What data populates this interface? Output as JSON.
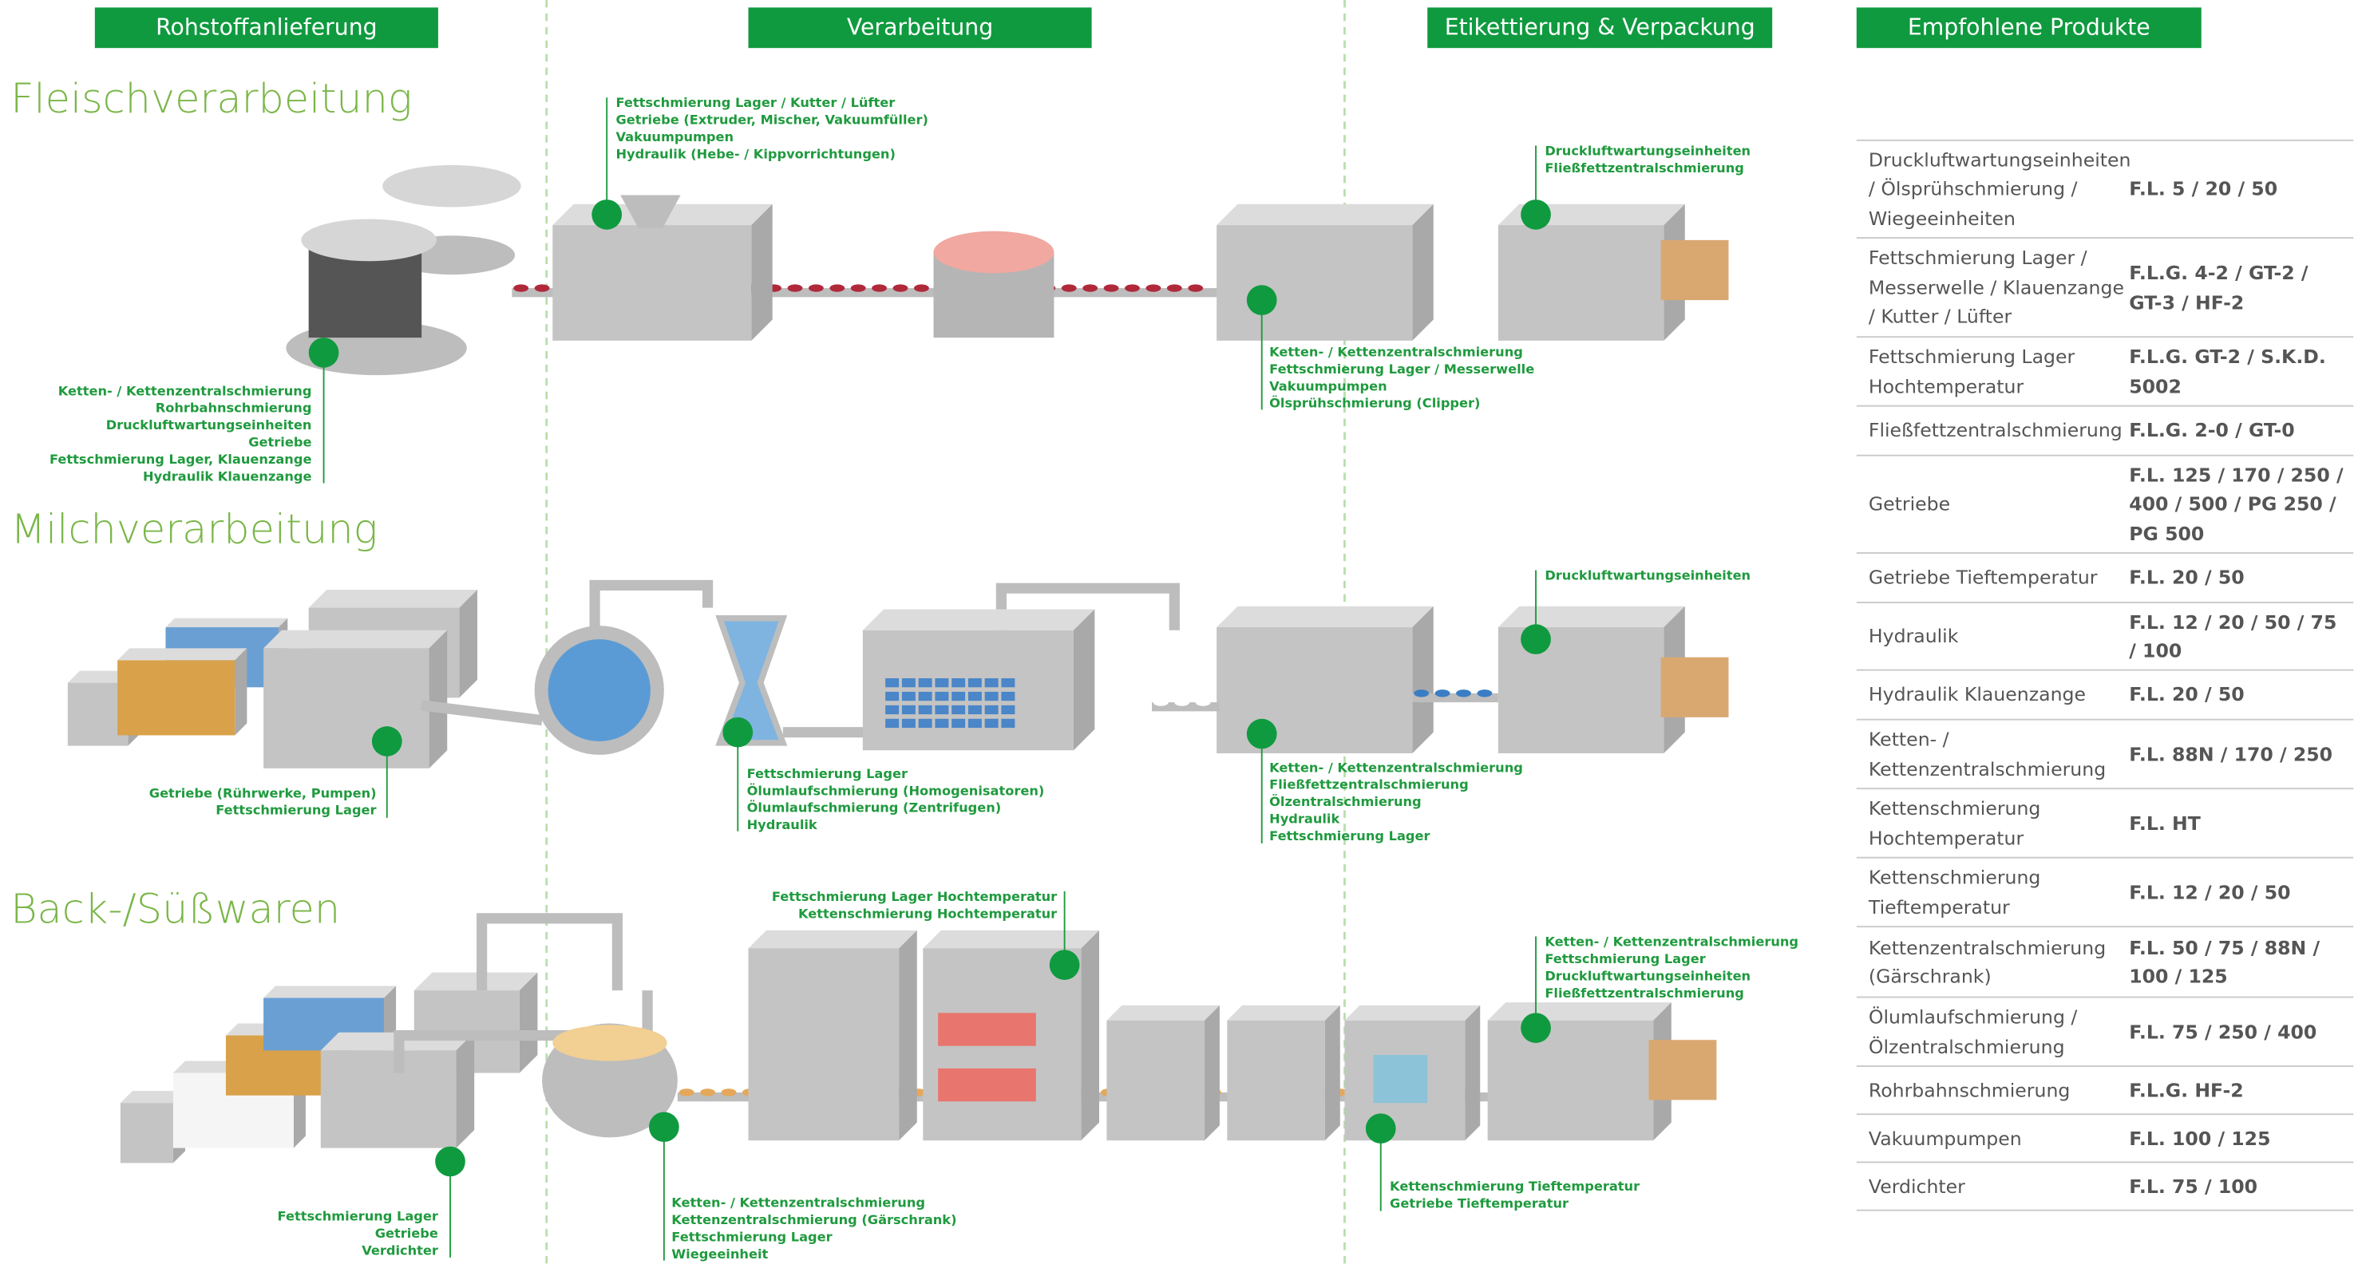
{
  "headers": [
    "Rohstoffanlieferung",
    "Verarbeitung",
    "Etikettierung & Verpackung",
    "Empfohlene Produkte"
  ],
  "sections": [
    {
      "title": "Fleischverarbeitung",
      "callouts": [
        {
          "lines": [
            "Ketten- / Kettenzentralschmierung",
            "Rohrbahnschmierung",
            "Druckluftwartungseinheiten",
            "Getriebe",
            "Fettschmierung Lager, Klauenzange",
            "Hydraulik Klauenzange"
          ]
        },
        {
          "lines": [
            "Fettschmierung Lager / Kutter / Lüfter",
            "Getriebe (Extruder, Mischer, Vakuumfüller)",
            "Vakuumpumpen",
            "Hydraulik (Hebe- / Kippvorrichtungen)"
          ]
        },
        {
          "lines": [
            "Ketten- / Kettenzentralschmierung",
            "Fettschmierung Lager / Messerwelle",
            "Vakuumpumpen",
            "Ölsprühschmierung (Clipper)"
          ]
        },
        {
          "lines": [
            "Druckluftwartungseinheiten",
            "Fließfettzentralschmierung"
          ]
        }
      ]
    },
    {
      "title": "Milchverarbeitung",
      "callouts": [
        {
          "lines": [
            "Getriebe (Rührwerke, Pumpen)",
            "Fettschmierung Lager"
          ]
        },
        {
          "lines": [
            "Fettschmierung Lager",
            "Ölumlaufschmierung (Homogenisatoren)",
            "Ölumlaufschmierung (Zentrifugen)",
            "Hydraulik"
          ]
        },
        {
          "lines": [
            "Ketten- / Kettenzentralschmierung",
            "Fließfettzentralschmierung",
            "Ölzentralschmierung",
            "Hydraulik",
            "Fettschmierung Lager"
          ]
        },
        {
          "lines": [
            "Druckluftwartungseinheiten"
          ]
        }
      ]
    },
    {
      "title": "Back-/Süßwaren",
      "callouts": [
        {
          "lines": [
            "Fettschmierung Lager",
            "Getriebe",
            "Verdichter"
          ]
        },
        {
          "lines": [
            "Ketten- / Kettenzentralschmierung",
            "Kettenzentralschmierung (Gärschrank)",
            "Fettschmierung Lager",
            "Wiegeeinheit"
          ]
        },
        {
          "lines": [
            "Fettschmierung Lager Hochtemperatur",
            "Kettenschmierung Hochtemperatur"
          ]
        },
        {
          "lines": [
            "Kettenschmierung Tieftemperatur",
            "Getriebe Tieftemperatur"
          ]
        },
        {
          "lines": [
            "Ketten- / Kettenzentralschmierung",
            "Fettschmierung Lager",
            "Druckluftwartungseinheiten",
            "Fließfettzentralschmierung"
          ]
        }
      ]
    }
  ],
  "table": {
    "rows": [
      [
        "Druckluftwartungseinheiten / Ölsprühschmierung / Wiegeeinheiten",
        "F.L. 5 / 20 / 50"
      ],
      [
        "Fettschmierung Lager / Messerwelle / Klauenzange / Kutter / Lüfter",
        "F.L.G. 4-2 / GT-2 / GT-3 / HF-2"
      ],
      [
        "Fettschmierung Lager Hochtemperatur",
        "F.L.G. GT-2 / S.K.D. 5002"
      ],
      [
        "Fließfettzentralschmierung",
        "F.L.G. 2-0 / GT-0"
      ],
      [
        "Getriebe",
        "F.L. 125 / 170 / 250 / 400 / 500 / PG 250 / PG 500"
      ],
      [
        "Getriebe Tieftemperatur",
        "F.L. 20 / 50"
      ],
      [
        "Hydraulik",
        "F.L. 12 / 20 / 50 / 75 / 100"
      ],
      [
        "Hydraulik Klauenzange",
        "F.L. 20 / 50"
      ],
      [
        "Ketten- / Kettenzentralschmierung",
        "F.L. 88N / 170 / 250"
      ],
      [
        "Kettenschmierung Hochtemperatur",
        "F.L. HT"
      ],
      [
        "Kettenschmierung Tieftemperatur",
        "F.L. 12 / 20 / 50"
      ],
      [
        "Kettenzentralschmierung (Gärschrank)",
        "F.L. 50 / 75 / 88N / 100 / 125"
      ],
      [
        "Ölumlaufschmierung / Ölzentralschmierung",
        "F.L. 75 / 250 / 400"
      ],
      [
        "Rohrbahnschmierung",
        "F.L.G. HF-2"
      ],
      [
        "Vakuumpumpen",
        "F.L. 100 / 125"
      ],
      [
        "Verdichter",
        "F.L. 75 / 100"
      ]
    ]
  }
}
